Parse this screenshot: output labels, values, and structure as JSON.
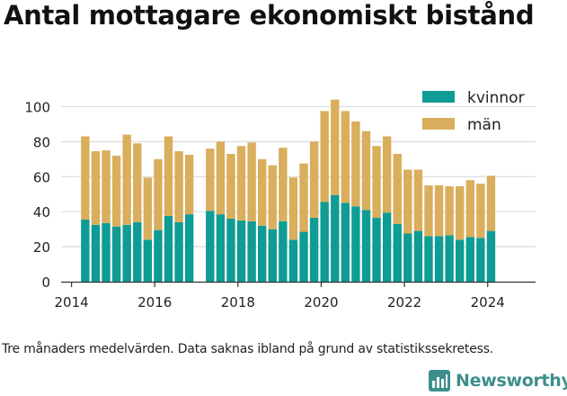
{
  "title": "Antal mottagare ekonomiskt bistånd",
  "caption": "Tre månaders medelvärden. Data saknas ibland på grund av statistikssekretess.",
  "brand": {
    "name": "Newsworthy",
    "color": "#3d8f8b",
    "icon": "newsworthy-logo-icon"
  },
  "colors": {
    "kvinnor": "#0e9c95",
    "man": "#d9ae5c",
    "grid": "#dcdcdc",
    "text": "#222222"
  },
  "chart_data": {
    "type": "bar",
    "stacked": true,
    "title": "Antal mottagare ekonomiskt bistånd",
    "xlabel": "",
    "ylabel": "",
    "xlim": [
      2013.75,
      2025.15
    ],
    "ylim": [
      0,
      110
    ],
    "x_ticks": [
      2014,
      2016,
      2018,
      2020,
      2022,
      2024
    ],
    "y_ticks": [
      0,
      20,
      40,
      60,
      80,
      100
    ],
    "grid": "horizontal",
    "legend_position": "top-right",
    "x": [
      2014.33,
      2014.58,
      2014.83,
      2015.08,
      2015.33,
      2015.58,
      2015.83,
      2016.08,
      2016.33,
      2016.58,
      2016.83,
      2017.33,
      2017.58,
      2017.83,
      2018.08,
      2018.33,
      2018.58,
      2018.83,
      2019.08,
      2019.33,
      2019.58,
      2019.83,
      2020.08,
      2020.33,
      2020.58,
      2020.83,
      2021.08,
      2021.33,
      2021.58,
      2021.83,
      2022.08,
      2022.33,
      2022.58,
      2022.83,
      2023.08,
      2023.33,
      2023.58,
      2023.83,
      2024.08
    ],
    "series": [
      {
        "name": "kvinnor",
        "values": [
          35.5,
          32.5,
          33.5,
          31.5,
          32.5,
          34,
          24,
          29.5,
          37.5,
          34,
          38.5,
          40.5,
          38.5,
          36,
          35,
          34.5,
          32,
          30,
          34.5,
          24,
          28.5,
          36.5,
          45.5,
          49.5,
          45,
          43,
          41,
          36.5,
          39.5,
          33,
          27.5,
          29,
          26,
          26,
          26.5,
          24,
          25.5,
          25,
          29
        ]
      },
      {
        "name": "män",
        "values": [
          47.5,
          42,
          41.5,
          40.5,
          51.5,
          45,
          35.5,
          40.5,
          45.5,
          40.5,
          34,
          35.5,
          41.5,
          37,
          42.5,
          45,
          38,
          36.5,
          42,
          35.5,
          39,
          43.5,
          52,
          54.5,
          52.5,
          48.5,
          45,
          41,
          43.5,
          40,
          36.5,
          35,
          29,
          29,
          28,
          30.5,
          32.5,
          31,
          31.5
        ]
      }
    ]
  }
}
